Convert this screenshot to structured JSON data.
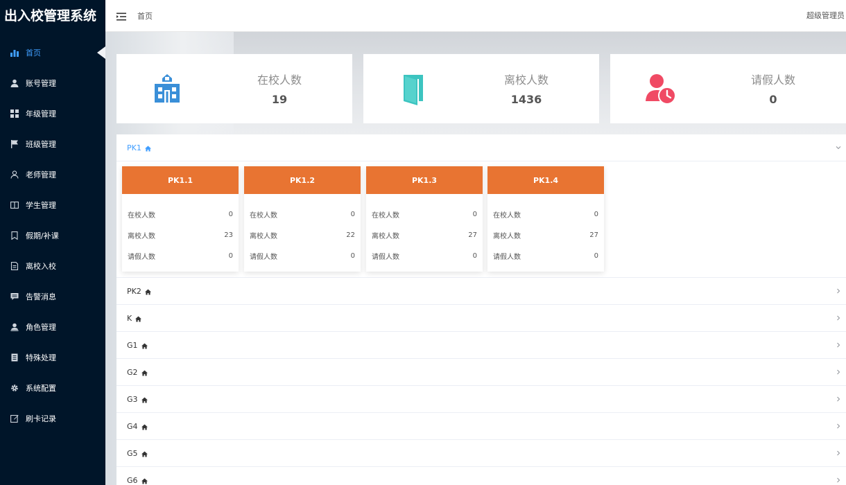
{
  "app": {
    "title": "出入校管理系统"
  },
  "sidebar": {
    "items": [
      {
        "label": "首页",
        "icon": "bar-chart-icon",
        "active": true
      },
      {
        "label": "账号管理",
        "icon": "user-icon"
      },
      {
        "label": "年级管理",
        "icon": "grid-icon"
      },
      {
        "label": "班级管理",
        "icon": "flag-icon"
      },
      {
        "label": "老师管理",
        "icon": "person-outline-icon"
      },
      {
        "label": "学生管理",
        "icon": "book-open-icon"
      },
      {
        "label": "假期/补课",
        "icon": "bookmark-icon"
      },
      {
        "label": "离校入校",
        "icon": "document-icon"
      },
      {
        "label": "告警消息",
        "icon": "message-icon"
      },
      {
        "label": "角色管理",
        "icon": "role-icon"
      },
      {
        "label": "特殊处理",
        "icon": "list-icon"
      },
      {
        "label": "系统配置",
        "icon": "gear-icon"
      },
      {
        "label": "刷卡记录",
        "icon": "edit-icon"
      }
    ]
  },
  "header": {
    "breadcrumb": "首页",
    "user": "超级管理员"
  },
  "stats": [
    {
      "title": "在校人数",
      "value": "19",
      "icon": "school-building-icon",
      "color": "#3a8fd8"
    },
    {
      "title": "离校人数",
      "value": "1436",
      "icon": "door-icon",
      "color": "#3cc4c0"
    },
    {
      "title": "请假人数",
      "value": "0",
      "icon": "user-clock-icon",
      "color": "#f04a64"
    }
  ],
  "grades": [
    {
      "name": "PK1",
      "expanded": true,
      "classes": [
        {
          "name": "PK1.1",
          "in_school": "0",
          "left_school": "23",
          "leave": "0"
        },
        {
          "name": "PK1.2",
          "in_school": "0",
          "left_school": "22",
          "leave": "0"
        },
        {
          "name": "PK1.3",
          "in_school": "0",
          "left_school": "27",
          "leave": "0"
        },
        {
          "name": "PK1.4",
          "in_school": "0",
          "left_school": "27",
          "leave": "0"
        }
      ]
    },
    {
      "name": "PK2"
    },
    {
      "name": "K"
    },
    {
      "name": "G1"
    },
    {
      "name": "G2"
    },
    {
      "name": "G3"
    },
    {
      "name": "G4"
    },
    {
      "name": "G5"
    },
    {
      "name": "G6"
    }
  ],
  "labels": {
    "in_school": "在校人数",
    "left_school": "离校人数",
    "leave": "请假人数"
  },
  "colors": {
    "sidebar_bg": "#001529",
    "accent": "#409eff",
    "class_header": "#e87432"
  }
}
